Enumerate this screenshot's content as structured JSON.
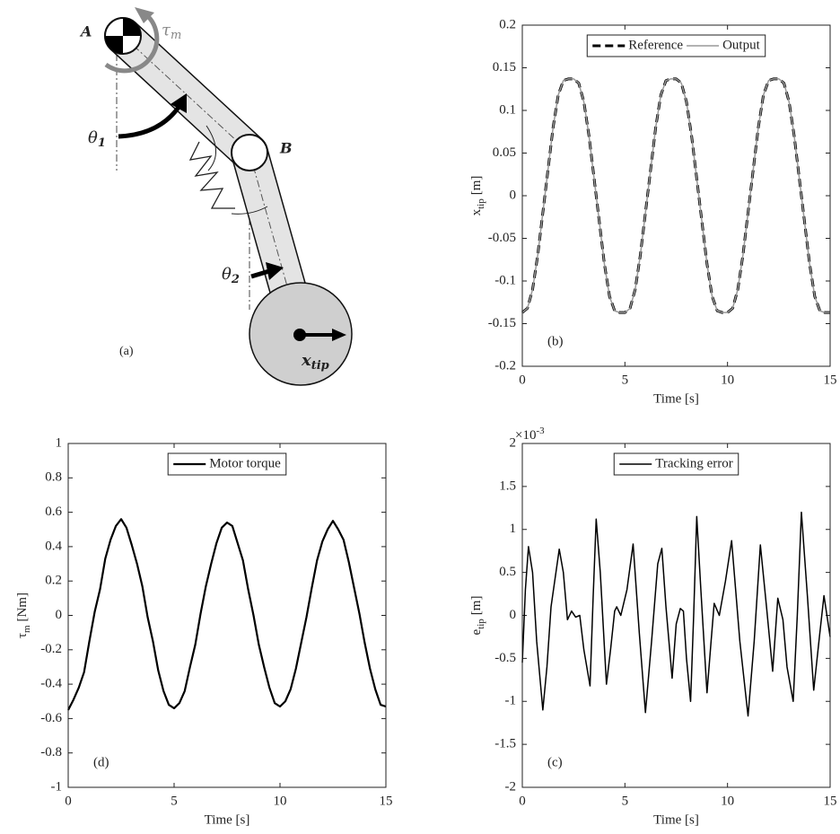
{
  "diagram": {
    "label_a": "A",
    "label_b": "B",
    "tau": "τ",
    "tau_sub": "m",
    "theta1": "θ",
    "theta1_sub": "1",
    "theta2": "θ",
    "theta2_sub": "2",
    "xtip": "x",
    "xtip_sub": "tip",
    "caption": "(a)"
  },
  "chart_data": [
    {
      "type": "line",
      "panel_label": "(b)",
      "xlabel": "Time [s]",
      "ylabel": {
        "text": "x",
        "sub": "tip",
        "unit": "[m]"
      },
      "xlim": [
        0,
        15
      ],
      "ylim": [
        -0.2,
        0.2
      ],
      "xticks": [
        0,
        5,
        10,
        15
      ],
      "yticks": [
        -0.2,
        -0.15,
        -0.1,
        -0.05,
        0,
        0.05,
        0.1,
        0.15,
        0.2
      ],
      "legend": "top",
      "x": [
        0,
        0.25,
        0.5,
        0.75,
        1,
        1.25,
        1.5,
        1.75,
        2,
        2.25,
        2.5,
        2.75,
        3,
        3.25,
        3.5,
        3.75,
        4,
        4.25,
        4.5,
        4.75,
        5,
        5.25,
        5.5,
        5.75,
        6,
        6.25,
        6.5,
        6.75,
        7,
        7.25,
        7.5,
        7.75,
        8,
        8.25,
        8.5,
        8.75,
        9,
        9.25,
        9.5,
        9.75,
        10,
        10.25,
        10.5,
        10.75,
        11,
        11.25,
        11.5,
        11.75,
        12,
        12.25,
        12.5,
        12.75,
        13,
        13.25,
        13.5,
        13.75,
        14,
        14.25,
        14.5,
        14.75,
        15
      ],
      "series": [
        {
          "name": "Reference",
          "color": "#000000",
          "style": "dashed",
          "width": 3,
          "values": [
            -0.137,
            -0.132,
            -0.11,
            -0.07,
            -0.02,
            0.03,
            0.08,
            0.118,
            0.135,
            0.137,
            0.137,
            0.132,
            0.11,
            0.07,
            0.02,
            -0.03,
            -0.08,
            -0.118,
            -0.135,
            -0.137,
            -0.137,
            -0.132,
            -0.11,
            -0.07,
            -0.02,
            0.03,
            0.08,
            0.118,
            0.135,
            0.137,
            0.137,
            0.132,
            0.11,
            0.07,
            0.02,
            -0.03,
            -0.08,
            -0.118,
            -0.135,
            -0.137,
            -0.137,
            -0.132,
            -0.11,
            -0.07,
            -0.02,
            0.03,
            0.08,
            0.118,
            0.135,
            0.137,
            0.137,
            0.132,
            0.11,
            0.07,
            0.02,
            -0.03,
            -0.08,
            -0.118,
            -0.135,
            -0.137,
            -0.137
          ]
        },
        {
          "name": "Output",
          "color": "#999999",
          "style": "solid",
          "width": 1.5,
          "values": [
            -0.137,
            -0.132,
            -0.11,
            -0.07,
            -0.02,
            0.03,
            0.08,
            0.118,
            0.135,
            0.137,
            0.137,
            0.132,
            0.11,
            0.07,
            0.02,
            -0.03,
            -0.08,
            -0.118,
            -0.135,
            -0.137,
            -0.137,
            -0.132,
            -0.11,
            -0.07,
            -0.02,
            0.03,
            0.08,
            0.118,
            0.135,
            0.137,
            0.137,
            0.132,
            0.11,
            0.07,
            0.02,
            -0.03,
            -0.08,
            -0.118,
            -0.135,
            -0.137,
            -0.137,
            -0.132,
            -0.11,
            -0.07,
            -0.02,
            0.03,
            0.08,
            0.118,
            0.135,
            0.137,
            0.137,
            0.132,
            0.11,
            0.07,
            0.02,
            -0.03,
            -0.08,
            -0.118,
            -0.135,
            -0.137,
            -0.137
          ]
        }
      ]
    },
    {
      "type": "line",
      "panel_label": "(d)",
      "xlabel": "Time [s]",
      "ylabel": {
        "text": "τ",
        "sub": "m",
        "unit": "[Nm]"
      },
      "xlim": [
        0,
        15
      ],
      "ylim": [
        -1,
        1
      ],
      "xticks": [
        0,
        5,
        10,
        15
      ],
      "yticks": [
        -1,
        -0.8,
        -0.6,
        -0.4,
        -0.2,
        0,
        0.2,
        0.4,
        0.6,
        0.8,
        1
      ],
      "legend": "top",
      "x": [
        0,
        0.25,
        0.5,
        0.75,
        1,
        1.25,
        1.5,
        1.75,
        2,
        2.25,
        2.5,
        2.75,
        3,
        3.25,
        3.5,
        3.75,
        4,
        4.25,
        4.5,
        4.75,
        5,
        5.25,
        5.5,
        5.75,
        6,
        6.25,
        6.5,
        6.75,
        7,
        7.25,
        7.5,
        7.75,
        8,
        8.25,
        8.5,
        8.75,
        9,
        9.25,
        9.5,
        9.75,
        10,
        10.25,
        10.5,
        10.75,
        11,
        11.25,
        11.5,
        11.75,
        12,
        12.25,
        12.5,
        12.75,
        13,
        13.25,
        13.5,
        13.75,
        14,
        14.25,
        14.5,
        14.75,
        15
      ],
      "series": [
        {
          "name": "Motor torque",
          "color": "#000000",
          "style": "solid",
          "width": 2.2,
          "values": [
            -0.55,
            -0.49,
            -0.42,
            -0.33,
            -0.15,
            0.02,
            0.15,
            0.33,
            0.44,
            0.52,
            0.56,
            0.51,
            0.41,
            0.3,
            0.17,
            -0.01,
            -0.15,
            -0.32,
            -0.44,
            -0.52,
            -0.54,
            -0.51,
            -0.44,
            -0.3,
            -0.17,
            0.01,
            0.17,
            0.3,
            0.42,
            0.51,
            0.54,
            0.52,
            0.42,
            0.32,
            0.15,
            0,
            -0.17,
            -0.3,
            -0.42,
            -0.51,
            -0.53,
            -0.5,
            -0.43,
            -0.31,
            -0.16,
            -0.01,
            0.16,
            0.32,
            0.43,
            0.5,
            0.55,
            0.5,
            0.44,
            0.31,
            0.16,
            0.01,
            -0.16,
            -0.31,
            -0.43,
            -0.52,
            -0.53
          ]
        }
      ]
    },
    {
      "type": "line",
      "panel_label": "(c)",
      "xlabel": "Time [s]",
      "ylabel": {
        "text": "e",
        "sub": "tip",
        "unit": "[m]"
      },
      "multiplier": {
        "base": "×10",
        "exponent": "-3"
      },
      "xlim": [
        0,
        15
      ],
      "ylim": [
        -2,
        2
      ],
      "xticks": [
        0,
        5,
        10,
        15
      ],
      "yticks": [
        -2,
        -1.5,
        -1,
        -0.5,
        0,
        0.5,
        1,
        1.5,
        2
      ],
      "legend": "top",
      "x": [
        0,
        0.15,
        0.3,
        0.5,
        0.7,
        1,
        1.2,
        1.4,
        1.8,
        2,
        2.2,
        2.4,
        2.6,
        2.8,
        3,
        3.3,
        3.45,
        3.6,
        3.8,
        4.1,
        4.3,
        4.5,
        4.6,
        4.8,
        5.1,
        5.4,
        5.7,
        6,
        6.3,
        6.6,
        6.8,
        7,
        7.3,
        7.5,
        7.7,
        7.85,
        8,
        8.2,
        8.35,
        8.5,
        8.7,
        9,
        9.2,
        9.35,
        9.6,
        9.9,
        10.2,
        10.6,
        11,
        11.3,
        11.6,
        11.9,
        12.2,
        12.45,
        12.7,
        12.9,
        13.2,
        13.4,
        13.6,
        13.9,
        14.2,
        14.5,
        14.7,
        15
      ],
      "series": [
        {
          "name": "Tracking error",
          "color": "#000000",
          "style": "solid",
          "width": 1.5,
          "values": [
            -0.55,
            0.3,
            0.8,
            0.5,
            -0.3,
            -1.1,
            -0.6,
            0.1,
            0.77,
            0.5,
            -0.05,
            0.05,
            -0.02,
            0,
            -0.4,
            -0.82,
            0.2,
            1.12,
            0.5,
            -0.8,
            -0.4,
            0.05,
            0.1,
            0,
            0.3,
            0.83,
            -0.2,
            -1.13,
            -0.3,
            0.6,
            0.78,
            0.1,
            -0.73,
            -0.1,
            0.08,
            0.05,
            -0.5,
            -1,
            0,
            1.15,
            0.3,
            -0.9,
            -0.3,
            0.14,
            0,
            0.4,
            0.87,
            -0.3,
            -1.17,
            -0.3,
            0.82,
            0.1,
            -0.65,
            0.2,
            -0.05,
            -0.6,
            -1,
            0,
            1.2,
            0.2,
            -0.87,
            -0.2,
            0.23,
            -0.25
          ]
        }
      ]
    }
  ]
}
